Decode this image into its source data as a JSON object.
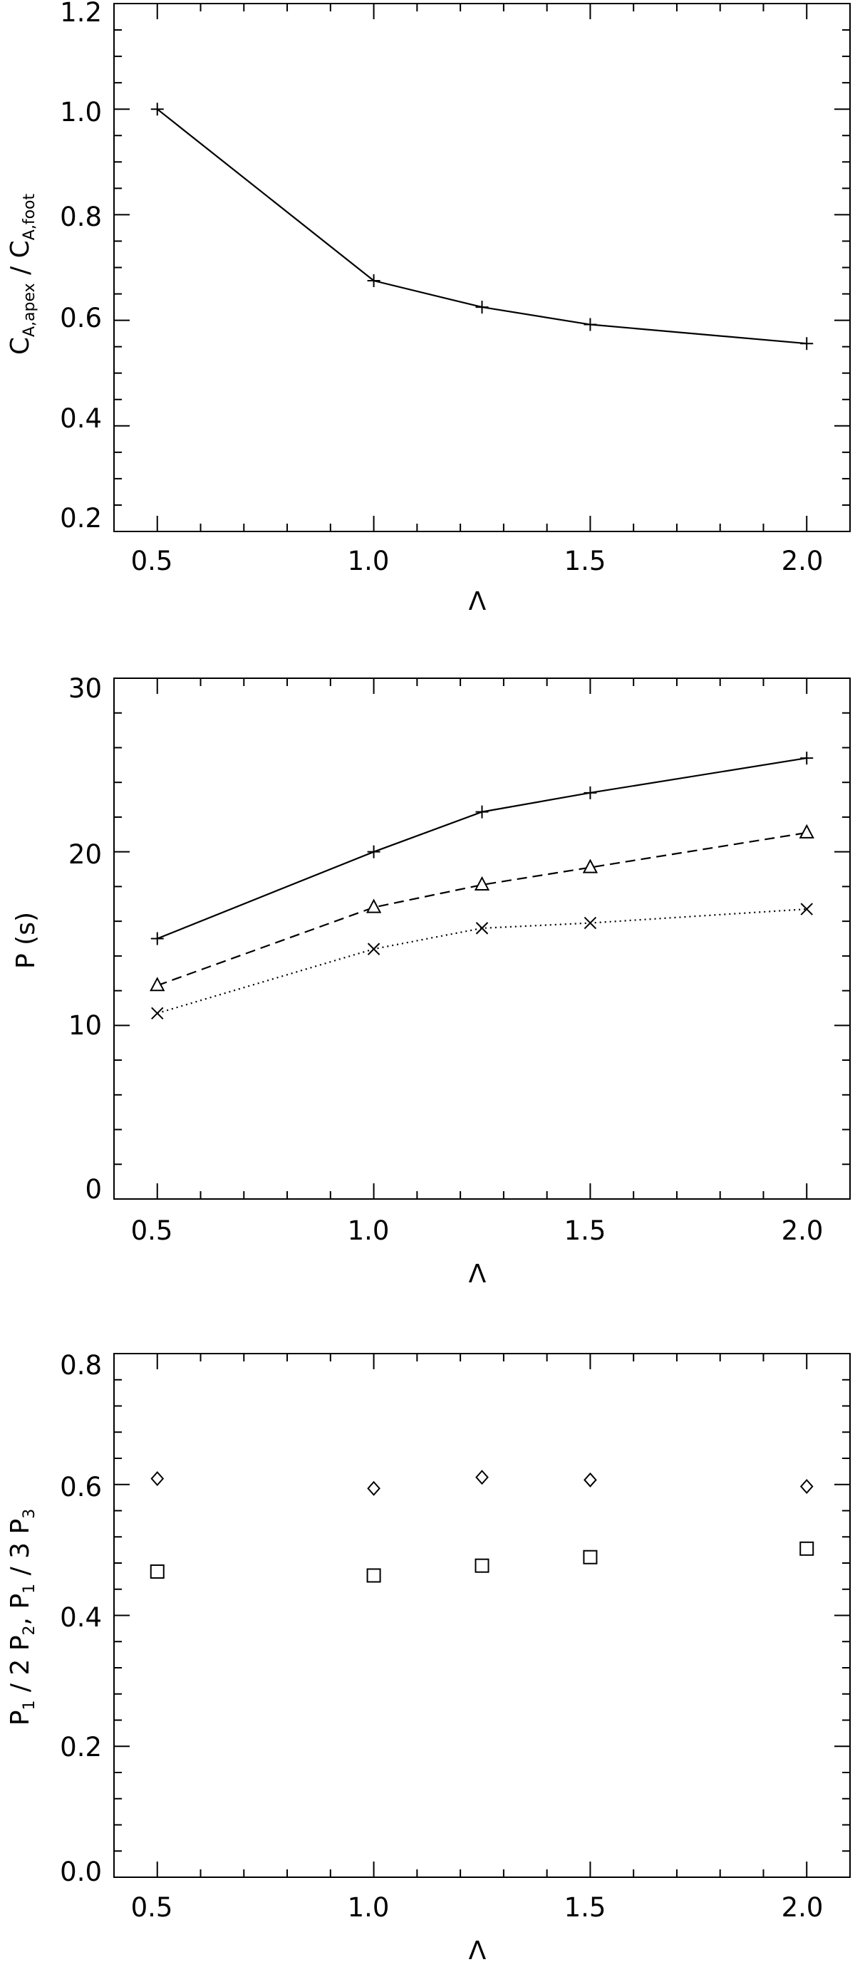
{
  "chart_data": [
    {
      "type": "line",
      "xlabel": "Λ",
      "ylabel": {
        "main": "C",
        "sub_apex": "A,apex",
        "sep": " / ",
        "main2": "C",
        "sub_foot": "A,foot"
      },
      "xlim": [
        0.4,
        2.1
      ],
      "ylim": [
        0.2,
        1.2
      ],
      "xticks": [
        "0.5",
        "1.0",
        "1.5",
        "2.0"
      ],
      "yticks": [
        "0.2",
        "0.4",
        "0.6",
        "0.8",
        "1.0",
        "1.2"
      ],
      "series": [
        {
          "style": "solid",
          "marker": "plus",
          "x": [
            0.5,
            1.0,
            1.25,
            1.5,
            2.0
          ],
          "values": [
            1.0,
            0.675,
            0.625,
            0.592,
            0.556
          ]
        }
      ]
    },
    {
      "type": "line",
      "xlabel": "Λ",
      "ylabel": "P (s)",
      "xlim": [
        0.4,
        2.1
      ],
      "ylim": [
        0,
        30
      ],
      "xticks": [
        "0.5",
        "1.0",
        "1.5",
        "2.0"
      ],
      "yticks": [
        "0",
        "10",
        "20",
        "30"
      ],
      "series": [
        {
          "style": "solid",
          "marker": "plus",
          "x": [
            0.5,
            1.0,
            1.25,
            1.5,
            2.0
          ],
          "values": [
            15.0,
            20.0,
            22.3,
            23.4,
            25.4
          ]
        },
        {
          "style": "dashed",
          "marker": "triangle",
          "x": [
            0.5,
            1.0,
            1.25,
            1.5,
            2.0
          ],
          "values": [
            12.3,
            16.8,
            18.1,
            19.1,
            21.1
          ]
        },
        {
          "style": "dotted",
          "marker": "x",
          "x": [
            0.5,
            1.0,
            1.25,
            1.5,
            2.0
          ],
          "values": [
            10.7,
            14.4,
            15.6,
            15.9,
            16.7
          ]
        }
      ]
    },
    {
      "type": "scatter",
      "xlabel": "Λ",
      "ylabel": {
        "p1": "P",
        "s1": "1",
        "mid1": " / 2 P",
        "s2": "2",
        "mid2": ", P",
        "s3": "1",
        "mid3": " / 3 P",
        "s4": "3"
      },
      "xlim": [
        0.4,
        2.1
      ],
      "ylim": [
        0.0,
        0.8
      ],
      "xticks": [
        "0.5",
        "1.0",
        "1.5",
        "2.0"
      ],
      "yticks": [
        "0.0",
        "0.2",
        "0.4",
        "0.6",
        "0.8"
      ],
      "series": [
        {
          "style": "none",
          "marker": "diamond",
          "x": [
            0.5,
            1.0,
            1.25,
            1.5,
            2.0
          ],
          "values": [
            0.609,
            0.594,
            0.611,
            0.607,
            0.597
          ]
        },
        {
          "style": "none",
          "marker": "square",
          "x": [
            0.5,
            1.0,
            1.25,
            1.5,
            2.0
          ],
          "values": [
            0.467,
            0.461,
            0.476,
            0.489,
            0.502
          ]
        }
      ]
    }
  ]
}
